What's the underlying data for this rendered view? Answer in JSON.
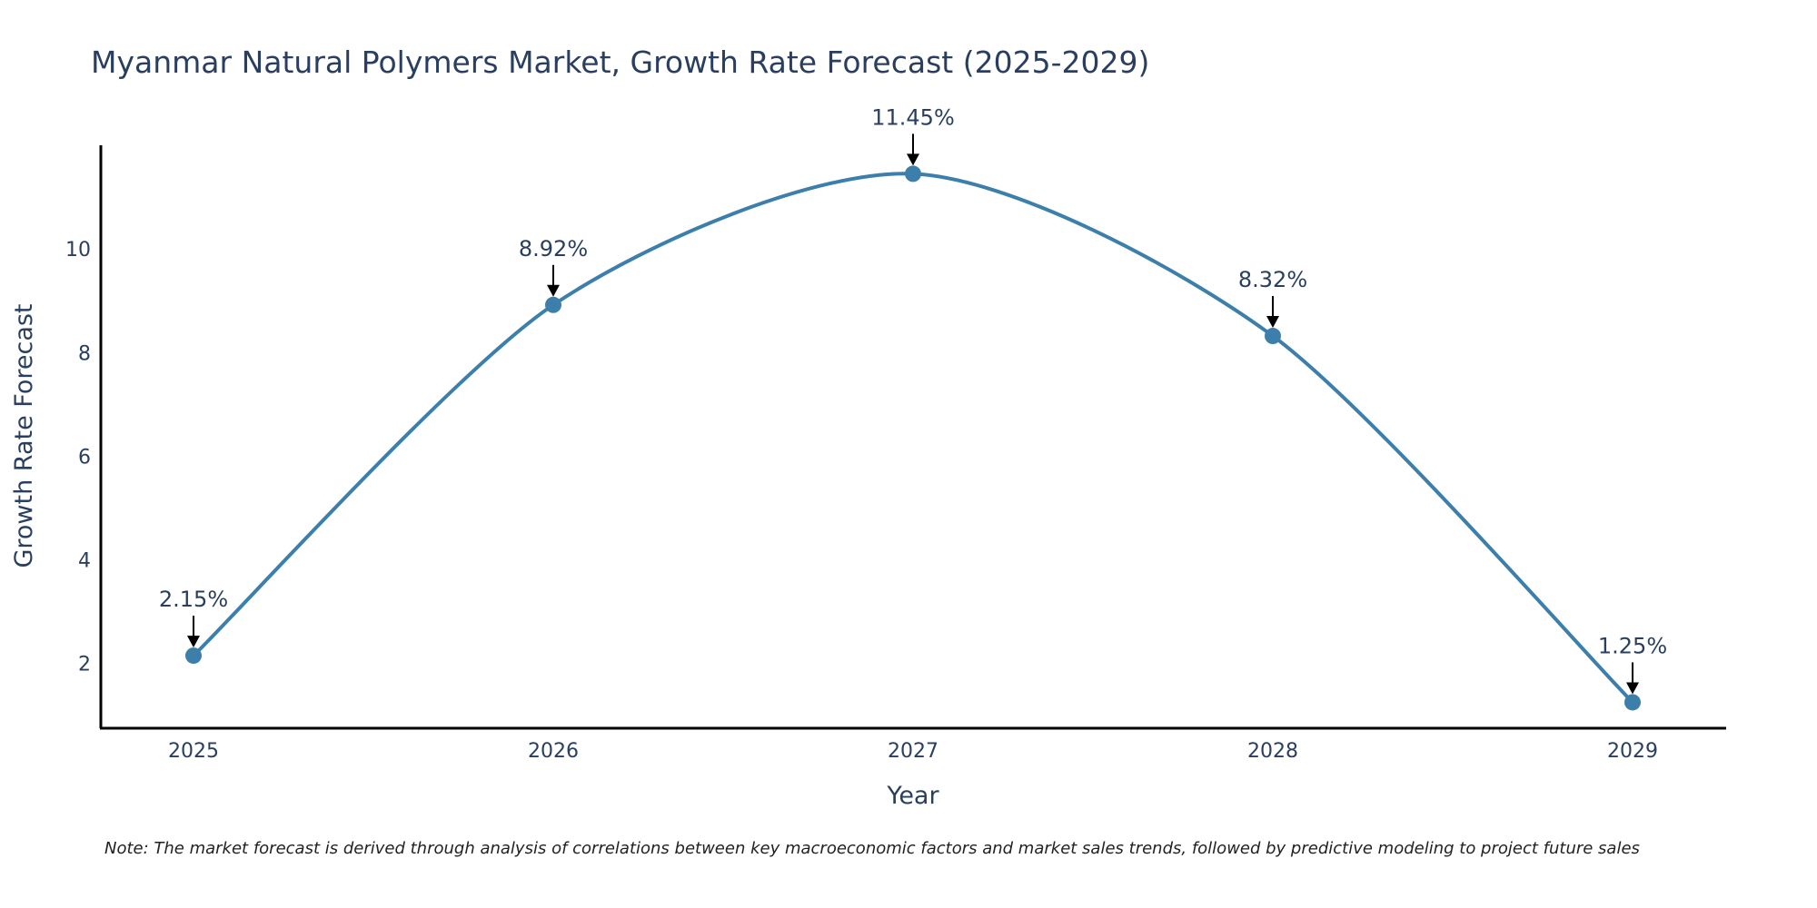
{
  "chart_data": {
    "type": "line",
    "title": "Myanmar Natural Polymers Market, Growth Rate Forecast (2025-2029)",
    "xlabel": "Year",
    "ylabel": "Growth Rate Forecast",
    "x": [
      "2025",
      "2026",
      "2027",
      "2028",
      "2029"
    ],
    "values": [
      2.15,
      8.92,
      11.45,
      8.32,
      1.25
    ],
    "data_labels": [
      "2.15%",
      "8.92%",
      "11.45%",
      "8.32%",
      "1.25%"
    ],
    "yticks": [
      2,
      4,
      6,
      8,
      10
    ],
    "ylim": [
      0.75,
      12.0
    ],
    "line_color": "#3d7fab",
    "grid": false,
    "note": "Note: The market forecast is derived through analysis of correlations between key macroeconomic factors and market sales trends, followed by predictive modeling to project future sales"
  }
}
